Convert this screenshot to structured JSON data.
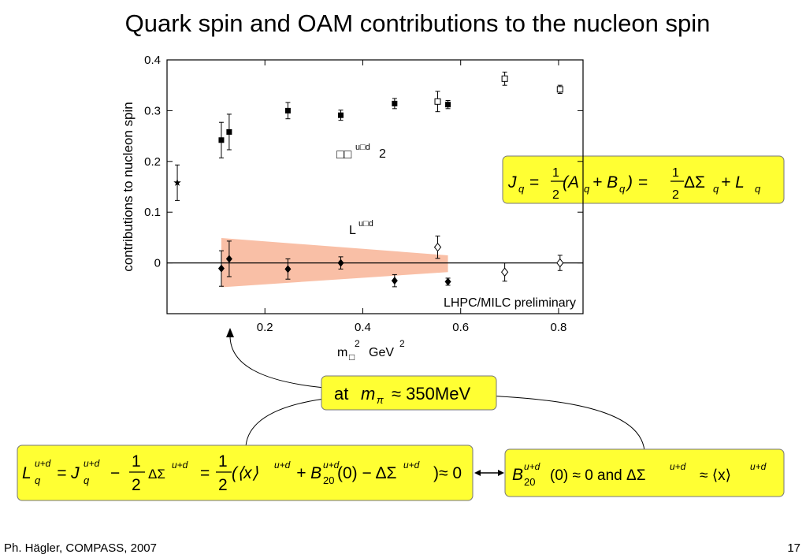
{
  "slide": {
    "title": "Quark spin and OAM contributions to the nucleon spin",
    "eq1": [
      "J",
      "q",
      "=",
      "1",
      "2",
      "(A",
      "q",
      "+ B",
      "q",
      ")",
      "=",
      "1",
      "2",
      "ΔΣ",
      "q",
      "+ L",
      "q"
    ],
    "eq2": [
      "at",
      "m",
      "π",
      "≈ 350MeV"
    ],
    "eq3": [
      "L",
      "q",
      "u+d",
      "= J",
      "q",
      "u+d",
      "−",
      "1",
      "2",
      "ΔΣ",
      "u+d",
      "=",
      "1",
      "2",
      "(⟨x⟩",
      "u+d",
      "+ B",
      "20",
      "u+d",
      "(0) − ΔΣ",
      "u+d",
      ")≈ 0"
    ],
    "eq4": [
      "B",
      "20",
      "u+d",
      "(0) ≈ 0  and  ΔΣ",
      "u+d",
      "≈ ⟨x⟩",
      "u+d"
    ],
    "footer": "Ph. Hägler, COMPASS, 2007",
    "page_number": "17"
  },
  "chart_data": {
    "type": "scatter",
    "ylabel": "contributions to nucleon spin",
    "xlabel": {
      "base": "m",
      "sub": "□",
      "sup": "2",
      "unit": "GeV",
      "unit_sup": "2"
    },
    "annotations": {
      "spin": [
        "□□",
        "u□d",
        "2"
      ],
      "oam": [
        "L",
        "u□d"
      ],
      "note": "LHPC/MILC preliminary"
    },
    "xlim": [
      0,
      0.85
    ],
    "ylim": [
      -0.1,
      0.4
    ],
    "xticks": [
      0.2,
      0.4,
      0.6,
      0.8
    ],
    "yticks": [
      0,
      0.1,
      0.2,
      0.3,
      0.4
    ],
    "series": [
      {
        "marker": "square-filled",
        "color": "#000000",
        "x": [
          0.111,
          0.127,
          0.247,
          0.355,
          0.465,
          0.574
        ],
        "values": [
          0.242,
          0.258,
          0.3,
          0.291,
          0.314,
          0.312
        ],
        "errors": [
          0.035,
          0.035,
          0.016,
          0.01,
          0.01,
          0.008
        ]
      },
      {
        "marker": "square-open",
        "color": "#000000",
        "x": [
          0.553,
          0.69,
          0.803
        ],
        "values": [
          0.318,
          0.363,
          0.342
        ],
        "errors": [
          0.02,
          0.013,
          0.008
        ]
      },
      {
        "marker": "star",
        "color": "#000000",
        "x": [
          0.021
        ],
        "values": [
          0.158
        ],
        "errors": [
          0.035
        ]
      },
      {
        "marker": "diamond-filled",
        "color": "#000000",
        "x": [
          0.111,
          0.127,
          0.247,
          0.355,
          0.465,
          0.574
        ],
        "values": [
          -0.011,
          0.008,
          -0.012,
          0.0,
          -0.035,
          -0.037
        ],
        "errors": [
          0.035,
          0.035,
          0.02,
          0.012,
          0.012,
          0.007
        ]
      },
      {
        "marker": "diamond-open",
        "color": "#000000",
        "x": [
          0.553,
          0.69,
          0.803
        ],
        "values": [
          0.031,
          -0.018,
          0.0
        ],
        "errors": [
          0.022,
          0.018,
          0.015
        ]
      }
    ],
    "band": {
      "color": "#f9bfa6",
      "x": [
        0.111,
        0.574
      ],
      "upper": [
        0.049,
        0.015
      ],
      "lower": [
        -0.048,
        -0.018
      ]
    }
  }
}
